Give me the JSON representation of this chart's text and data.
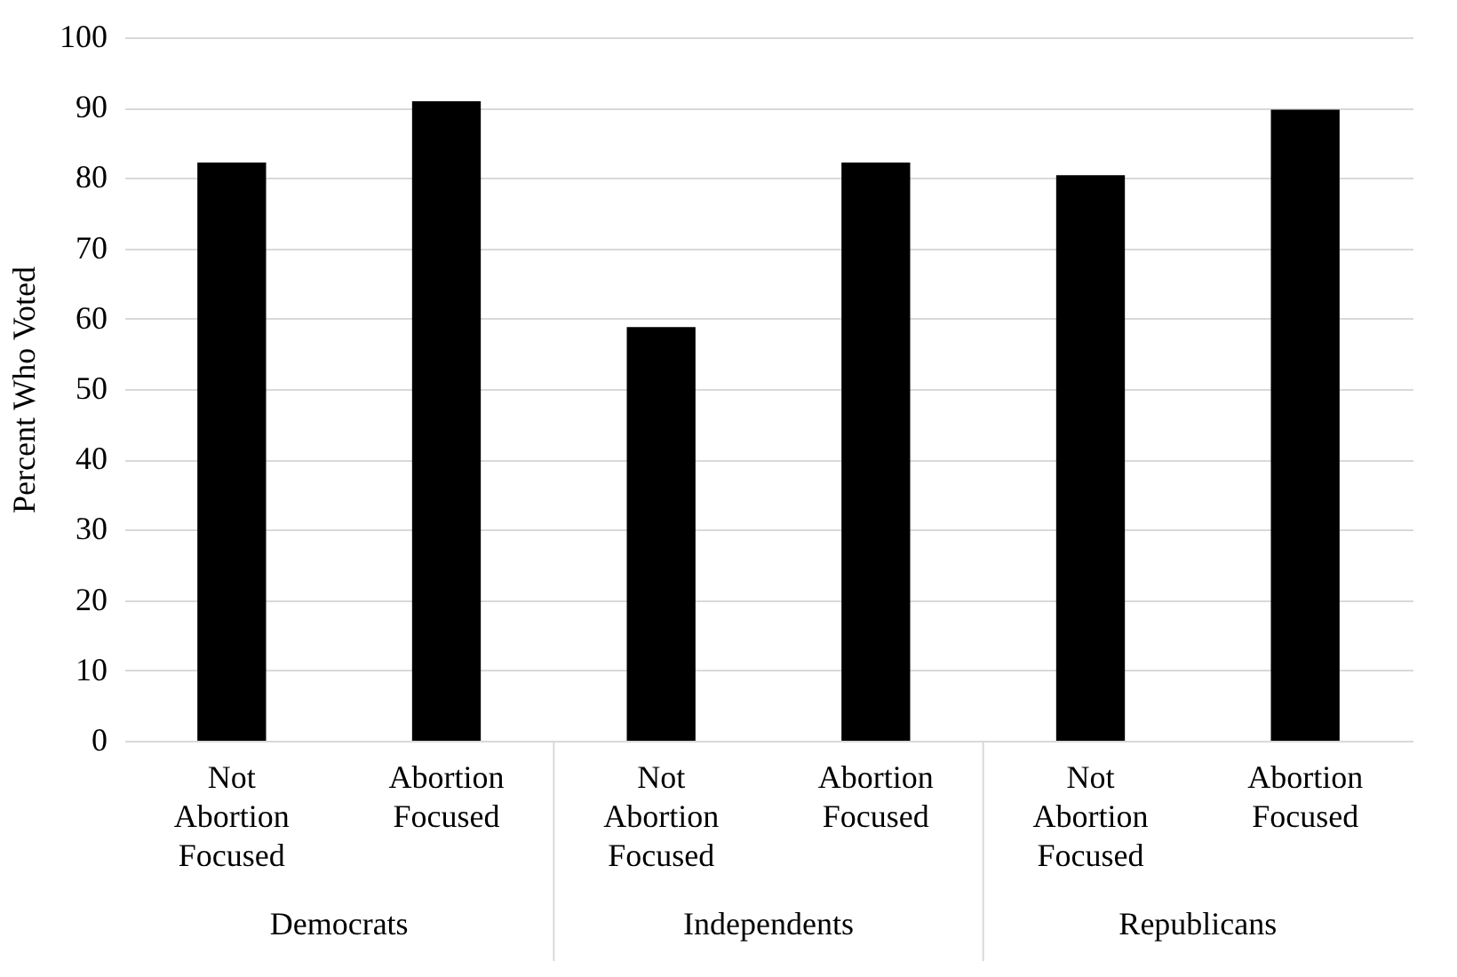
{
  "chart_data": {
    "type": "bar",
    "categories": [
      "Not Abortion Focused",
      "Abortion Focused",
      "Not Abortion Focused",
      "Abortion Focused",
      "Not Abortion Focused",
      "Abortion Focused"
    ],
    "values": [
      82.2,
      90.9,
      58.8,
      82.2,
      80.4,
      89.7
    ],
    "color": "#000000",
    "ylabel": "Percent Who Voted",
    "ylim": [
      0,
      100
    ],
    "yticks": [
      0,
      10,
      20,
      30,
      40,
      50,
      60,
      70,
      80,
      90,
      100
    ],
    "grid": "y",
    "annotations": [
      "Democrats",
      "Independents",
      "Republicans"
    ]
  }
}
